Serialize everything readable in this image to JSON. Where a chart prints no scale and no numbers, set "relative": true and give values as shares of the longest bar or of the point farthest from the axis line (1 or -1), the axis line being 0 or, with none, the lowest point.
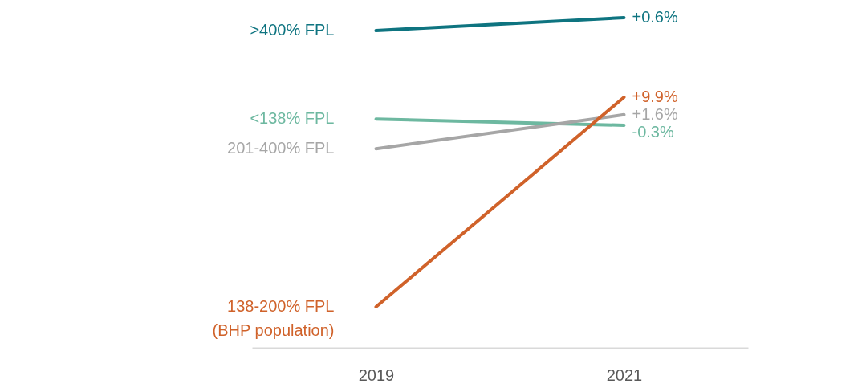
{
  "chart_data": {
    "type": "line",
    "relative": true,
    "categories": [
      "2019",
      "2021"
    ],
    "series": [
      {
        "name": ">400% FPL",
        "color": "#0e7480",
        "values": [
          0.961,
          1
        ]
      },
      {
        "name": "<138% FPL",
        "color": "#6db8a0",
        "values": [
          0.693,
          0.674
        ]
      },
      {
        "name": "201-400% FPL",
        "color": "#a6a6a6",
        "values": [
          0.603,
          0.706
        ]
      },
      {
        "name": "138-200% FPL\n(BHP population)",
        "color": "#d0622a",
        "values": [
          0.124,
          0.759
        ]
      }
    ],
    "annotations": [
      {
        "text": "+0.6%",
        "x": "2021",
        "y": 1
      },
      {
        "text": "-0.3%",
        "x": "2021",
        "y": 0.674
      },
      {
        "text": "+1.6%",
        "x": "2021",
        "y": 0.706
      },
      {
        "text": "+9.9%",
        "x": "2021",
        "y": 0.759
      }
    ]
  }
}
